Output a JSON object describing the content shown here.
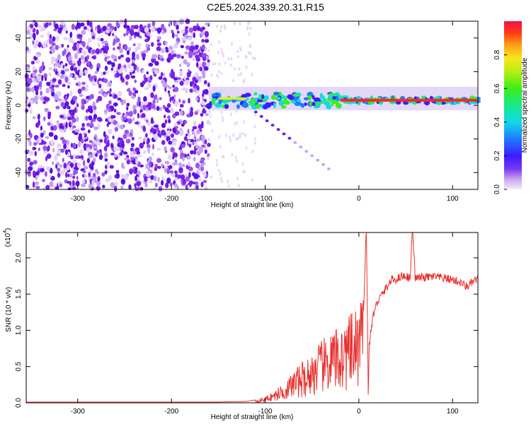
{
  "title": "C2E5.2024.339.20.31.R15",
  "spectrogram": {
    "xlabel": "Height of straight line (km)",
    "ylabel": "Frequency (Hz)",
    "xlim": [
      -355,
      127
    ],
    "ylim": [
      -50,
      50
    ],
    "xticks": [
      -300,
      -200,
      -100,
      0,
      100
    ],
    "yticks": [
      -40,
      -20,
      0,
      20,
      40
    ],
    "colorbar": {
      "label": "Normalized spectral amplitude",
      "range": [
        0,
        1
      ],
      "ticks": [
        "0.0",
        "0.2",
        "0.4",
        "0.6",
        "0.8"
      ]
    },
    "regions": [
      {
        "name": "noise",
        "x": [
          -355,
          -160
        ],
        "y": [
          -50,
          50
        ],
        "amplitude": 0.1
      },
      {
        "name": "signal-band",
        "x": [
          -160,
          127
        ],
        "center_hz": 3,
        "amplitude_max": 1.0
      }
    ]
  },
  "chart_data": {
    "type": "line",
    "title": "",
    "xlabel": "Height of straight line (km)",
    "ylabel": "SNR (10 * v/v)",
    "scale_label": "(x10",
    "scale_exponent": "4",
    "xlim": [
      -355,
      127
    ],
    "ylim": [
      0,
      2.35
    ],
    "xticks": [
      -300,
      -200,
      -100,
      0,
      100
    ],
    "yticks": [
      "0.0",
      "0.5",
      "1.0",
      "1.5",
      "2.0"
    ],
    "color": "#e8322f",
    "x": [
      -355,
      -300,
      -200,
      -150,
      -120,
      -110,
      -100,
      -95,
      -90,
      -85,
      -80,
      -75,
      -70,
      -65,
      -60,
      -55,
      -50,
      -45,
      -40,
      -35,
      -30,
      -25,
      -20,
      -15,
      -10,
      -5,
      0,
      5,
      8,
      10,
      11,
      15,
      20,
      25,
      30,
      35,
      40,
      45,
      50,
      55,
      57,
      60,
      70,
      80,
      90,
      100,
      110,
      115,
      120,
      125
    ],
    "y": [
      0.01,
      0.01,
      0.01,
      0.01,
      0.02,
      0.04,
      0.07,
      0.12,
      0.14,
      0.2,
      0.25,
      0.3,
      0.4,
      0.45,
      0.5,
      0.55,
      0.6,
      0.7,
      0.75,
      0.8,
      0.85,
      0.9,
      0.95,
      1.0,
      1.05,
      1.1,
      1.2,
      1.3,
      2.5,
      0.1,
      0.8,
      1.2,
      1.4,
      1.5,
      1.6,
      1.7,
      1.7,
      1.75,
      1.75,
      1.72,
      2.5,
      1.72,
      1.73,
      1.74,
      1.72,
      1.7,
      1.65,
      1.6,
      1.65,
      1.7
    ]
  }
}
